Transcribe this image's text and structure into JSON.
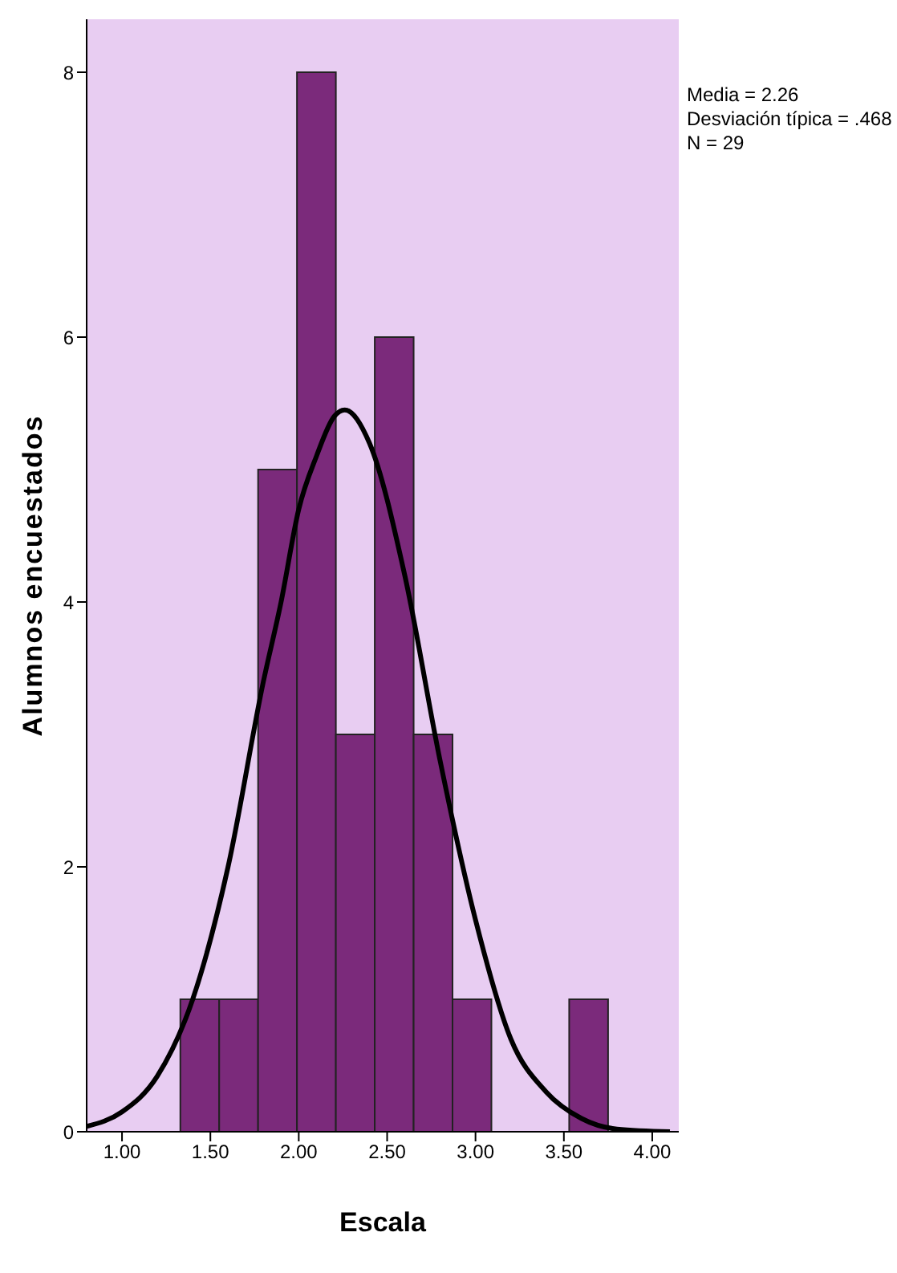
{
  "chart_data": {
    "type": "histogram",
    "xlabel": "Escala",
    "ylabel": "Alumnos encuestados",
    "bins": [
      1.33,
      1.55,
      1.77,
      1.99,
      2.21,
      2.43,
      2.65,
      2.87,
      3.09,
      3.31,
      3.53,
      3.75
    ],
    "values": [
      1,
      1,
      5,
      8,
      3,
      6,
      3,
      1,
      0,
      0,
      1
    ],
    "color": "#7b2a7b",
    "series": [
      {
        "type": "line",
        "color": "#000000",
        "x": [
          0.8,
          1.0,
          1.2,
          1.4,
          1.6,
          1.8,
          1.9,
          2.0,
          2.1,
          2.2,
          2.26,
          2.4,
          2.6,
          2.8,
          3.0,
          3.2,
          3.4,
          3.6,
          3.8,
          4.1
        ],
        "values": [
          0.04,
          0.15,
          0.42,
          1.0,
          2.0,
          3.4,
          4.0,
          4.7,
          5.1,
          5.4,
          5.45,
          5.2,
          4.2,
          2.8,
          1.6,
          0.7,
          0.3,
          0.1,
          0.02,
          0
        ]
      }
    ],
    "marker": "none",
    "xlim": [
      0.8,
      4.15
    ],
    "xticks": [
      {
        "value": 1,
        "label": "1.00"
      },
      {
        "value": 1.5,
        "label": "1.50"
      },
      {
        "value": 2,
        "label": "2.00"
      },
      {
        "value": 2.5,
        "label": "2.50"
      },
      {
        "value": 3,
        "label": "3.00"
      },
      {
        "value": 3.5,
        "label": "3.50"
      },
      {
        "value": 4,
        "label": "4.00"
      }
    ],
    "ylim": [
      0,
      8.4
    ],
    "yticks": [
      0,
      2,
      4,
      6,
      8
    ],
    "annotations": [
      "Media = 2.26",
      "Desviación típica = .468",
      "N = 29"
    ]
  }
}
